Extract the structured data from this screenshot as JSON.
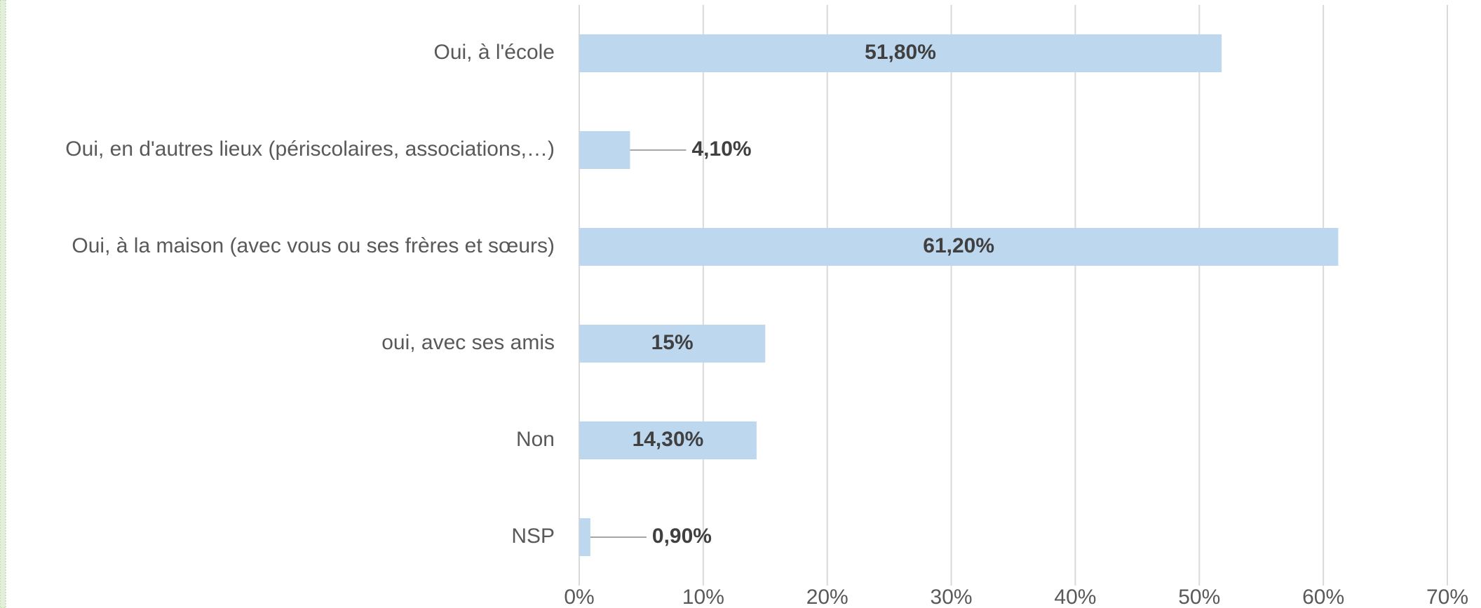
{
  "chart_data": {
    "type": "bar",
    "orientation": "horizontal",
    "categories": [
      "Oui, à l'école",
      "Oui, en d'autres lieux (périscolaires, associations,…)",
      "Oui, à la maison (avec vous ou ses frères et sœurs)",
      "oui, avec ses amis",
      "Non",
      "NSP"
    ],
    "values": [
      51.8,
      4.1,
      61.2,
      15,
      14.3,
      0.9
    ],
    "value_labels": [
      "51,80%",
      "4,10%",
      "61,20%",
      "15%",
      "14,30%",
      "0,90%"
    ],
    "color": "#bdd7ee",
    "xlim": [
      0,
      70
    ],
    "xticks": [
      {
        "value": 0,
        "label": "0%"
      },
      {
        "value": 10,
        "label": "10%"
      },
      {
        "value": 20,
        "label": "20%"
      },
      {
        "value": 30,
        "label": "30%"
      },
      {
        "value": 40,
        "label": "40%"
      },
      {
        "value": 50,
        "label": "50%"
      },
      {
        "value": 60,
        "label": "60%"
      },
      {
        "value": 70,
        "label": "70%"
      }
    ],
    "grid": true
  }
}
